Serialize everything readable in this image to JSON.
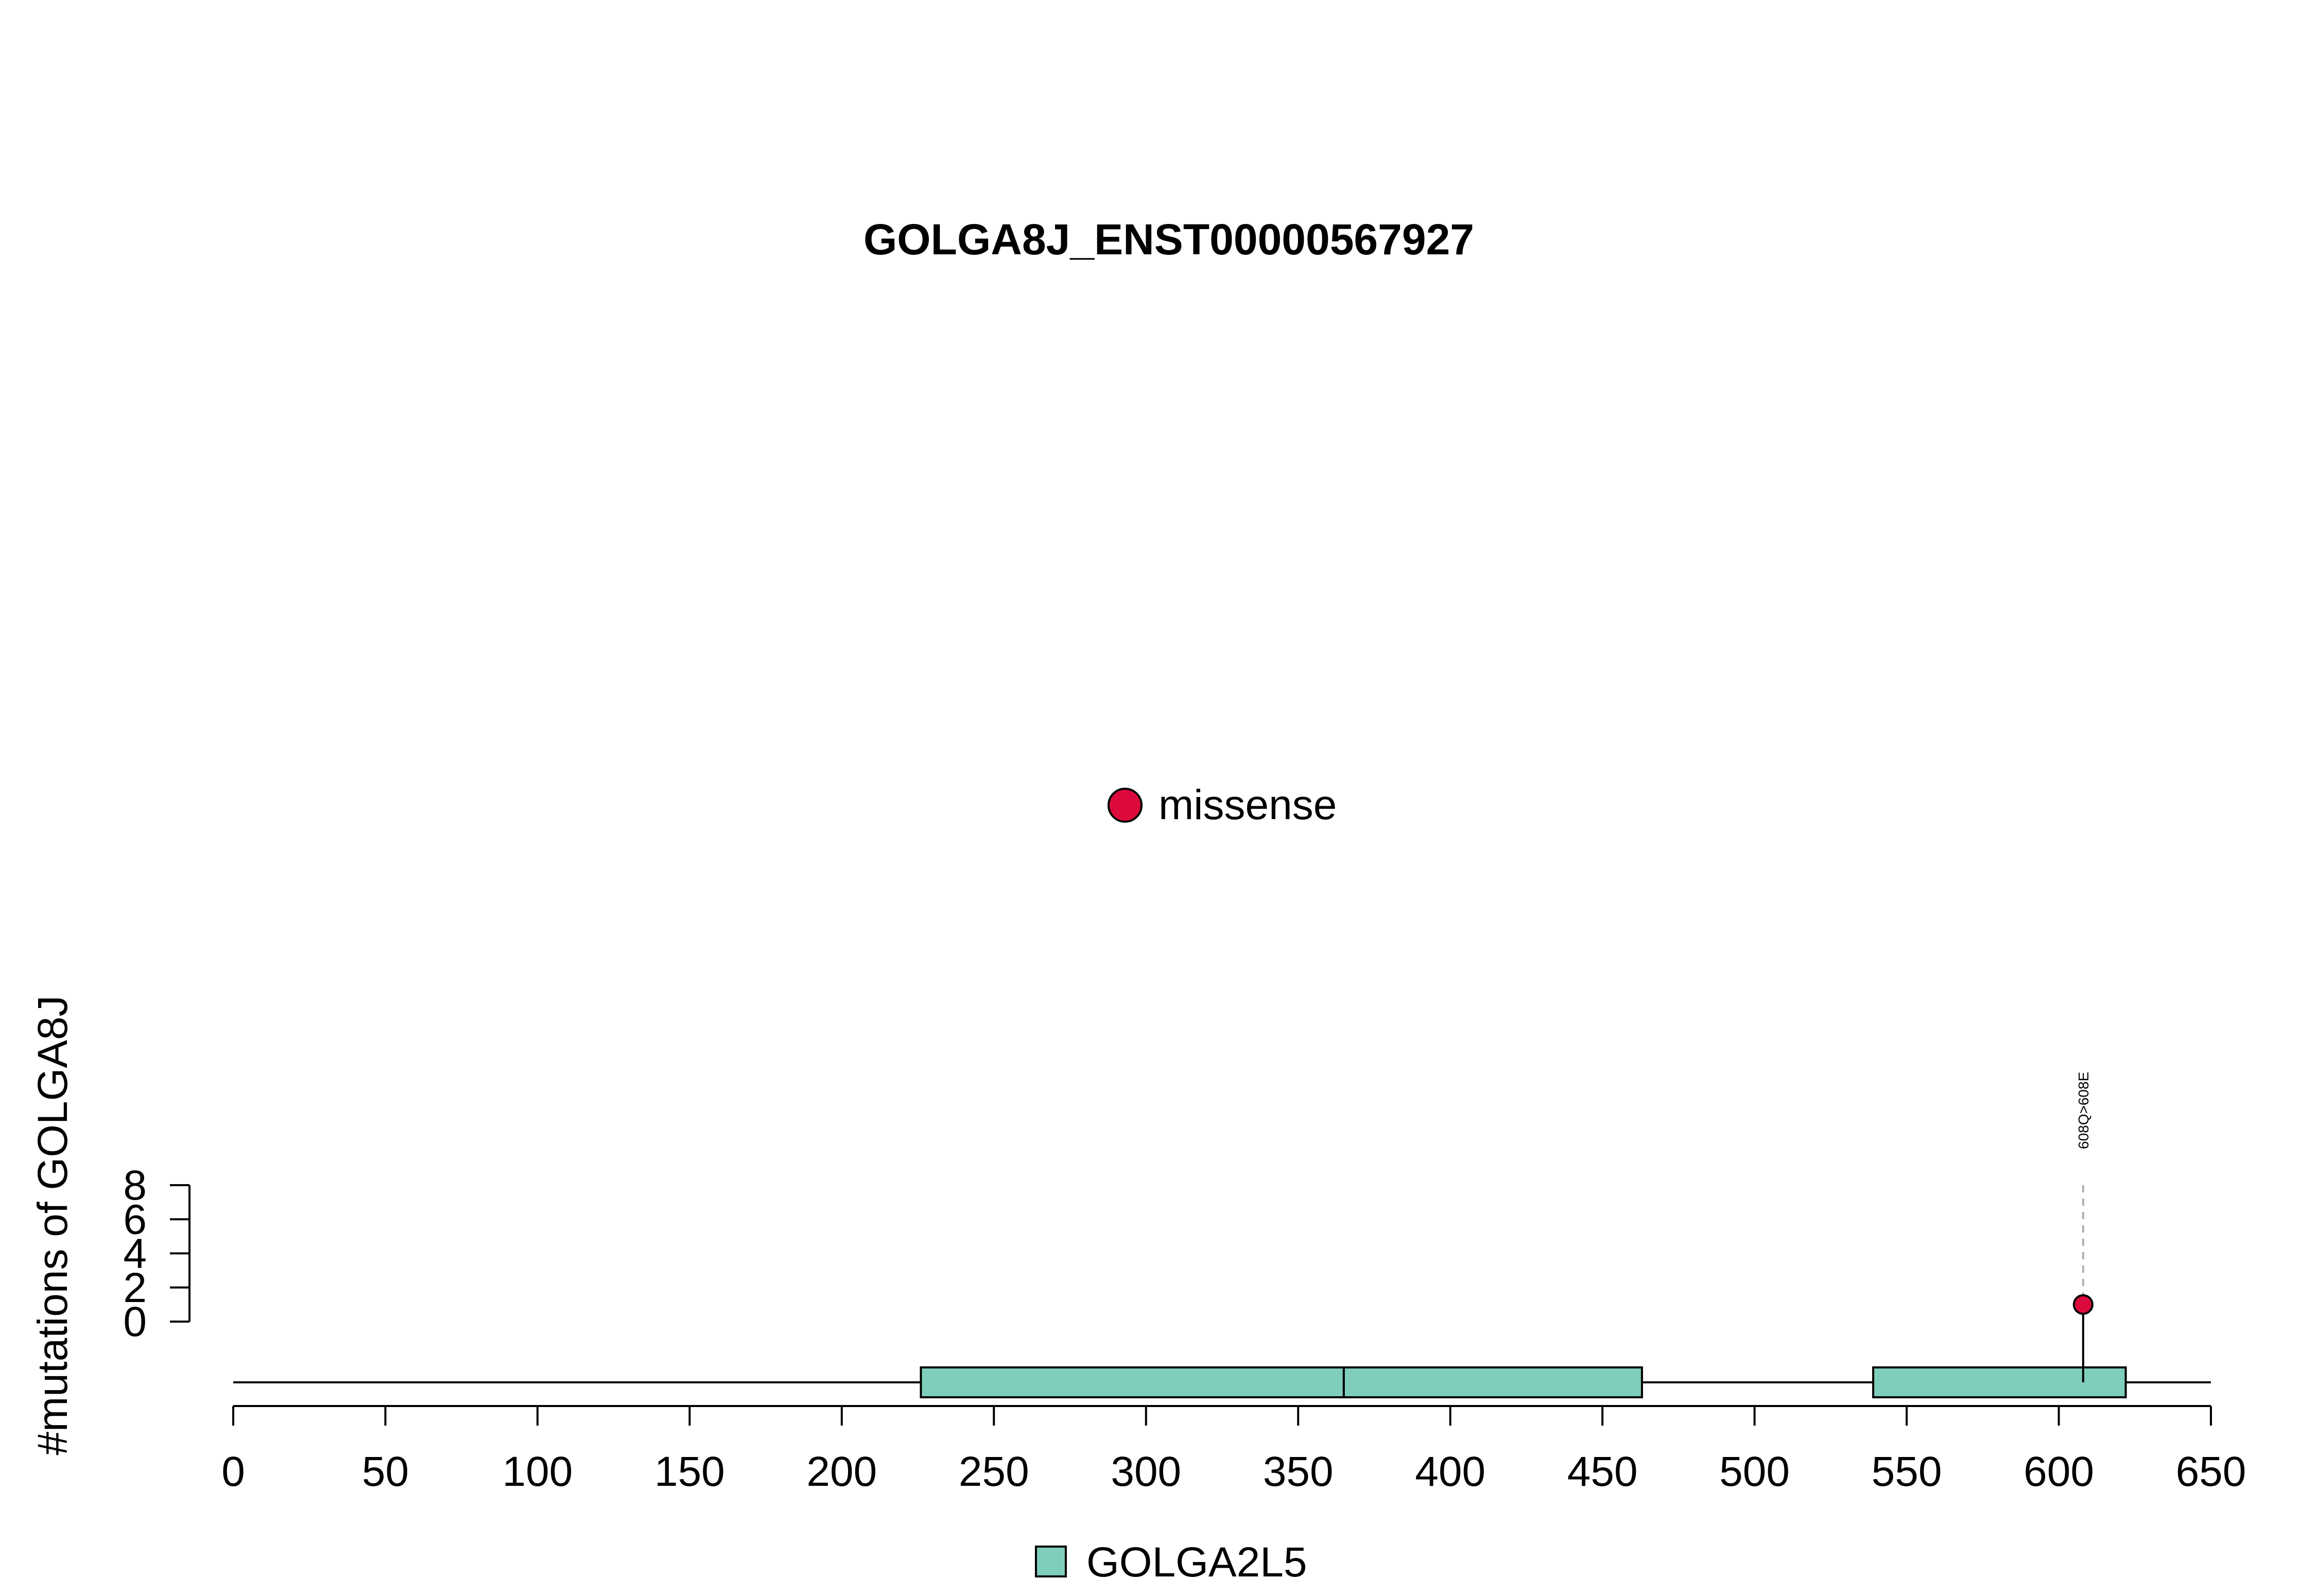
{
  "chart_data": {
    "type": "lollipop",
    "title": "GOLGA8J_ENST00000567927",
    "xlabel": "",
    "ylabel": "#mutations of GOLGA8J",
    "xlim": [
      0,
      650
    ],
    "x_ticks": [
      0,
      50,
      100,
      150,
      200,
      250,
      300,
      350,
      400,
      450,
      500,
      550,
      600,
      650
    ],
    "x_tick_labels": [
      "0",
      "50",
      "100",
      "150",
      "200",
      "250",
      "300",
      "350",
      "400",
      "450",
      "500",
      "550",
      "600",
      "650"
    ],
    "ylim": [
      0,
      8
    ],
    "y_ticks": [
      0,
      2,
      4,
      6,
      8
    ],
    "y_tick_labels": [
      "0",
      "2",
      "4",
      "6",
      "8"
    ],
    "protein_length": 650,
    "domains": [
      {
        "name": "GOLGA2L5",
        "start": 226,
        "end": 365,
        "color": "#7fcdbb"
      },
      {
        "name": "GOLGA2L5",
        "start": 365,
        "end": 463,
        "color": "#7fcdbb"
      },
      {
        "name": "GOLGA2L5",
        "start": 539,
        "end": 622,
        "color": "#7fcdbb"
      }
    ],
    "mutations": [
      {
        "position": 608,
        "count": 1,
        "type": "missense",
        "label": "608Q>608E",
        "color": "#dc0a3c"
      }
    ],
    "legend_mutation_types": [
      {
        "label": "missense",
        "color": "#dc0a3c"
      }
    ],
    "legend_domains": [
      {
        "label": "GOLGA2L5",
        "color": "#7fcdbb"
      }
    ],
    "grid": false
  }
}
